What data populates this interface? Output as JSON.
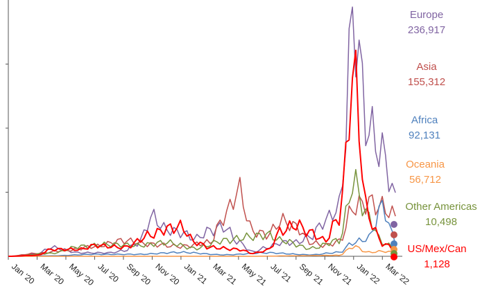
{
  "chart_data": {
    "type": "line",
    "title": "",
    "xlabel": "",
    "ylabel": "",
    "x_ticks": [
      "Jan '20",
      "Mar '20",
      "May '20",
      "Jul '20",
      "Sep '20",
      "Nov '20",
      "Jan '21",
      "Mar '21",
      "May '21",
      "Jul '21",
      "Sep '21",
      "Nov '21",
      "Jan '22",
      "Mar '22"
    ],
    "x_range": [
      "2020-01",
      "2022-04"
    ],
    "y_range": [
      0,
      260000
    ],
    "y_gridlines": [
      0,
      65000,
      130000,
      195000
    ],
    "grid": false,
    "legend_placement": "right",
    "series": [
      {
        "name": "Europe",
        "value_label": "236,917",
        "color": "#8064a2",
        "x": [
          "2020-01",
          "2020-03",
          "2020-04",
          "2020-06",
          "2020-08",
          "2020-09",
          "2020-10",
          "2020-11",
          "2020-12",
          "2021-01",
          "2021-02",
          "2021-03",
          "2021-04",
          "2021-05",
          "2021-06",
          "2021-07",
          "2021-08",
          "2021-09",
          "2021-10",
          "2021-11",
          "2021-12",
          "2022-01",
          "2022-02",
          "2022-03",
          "2022-04"
        ],
        "y": [
          0,
          2500,
          9000,
          3500,
          3500,
          5500,
          13000,
          40000,
          27000,
          24000,
          18000,
          26000,
          30000,
          14000,
          4500,
          9000,
          14000,
          14000,
          20000,
          36000,
          50000,
          240000,
          130000,
          105000,
          55000
        ]
      },
      {
        "name": "Asia",
        "value_label": "155,312",
        "color": "#c0504d",
        "x": [
          "2020-01",
          "2020-03",
          "2020-05",
          "2020-07",
          "2020-09",
          "2020-11",
          "2021-01",
          "2021-03",
          "2021-04",
          "2021-05",
          "2021-06",
          "2021-07",
          "2021-08",
          "2021-09",
          "2021-10",
          "2021-11",
          "2021-12",
          "2022-01",
          "2022-02",
          "2022-03",
          "2022-04"
        ],
        "y": [
          0,
          3000,
          6000,
          10000,
          16000,
          12000,
          10000,
          14000,
          40000,
          67000,
          25000,
          22000,
          36000,
          30000,
          14000,
          11000,
          15000,
          50000,
          55000,
          50000,
          40000
        ]
      },
      {
        "name": "Africa",
        "value_label": "92,131",
        "color": "#4f81bd",
        "x": [
          "2020-01",
          "2020-04",
          "2020-07",
          "2020-10",
          "2021-01",
          "2021-04",
          "2021-07",
          "2021-10",
          "2021-12",
          "2022-01",
          "2022-02",
          "2022-03",
          "2022-04"
        ],
        "y": [
          0,
          500,
          2000,
          2000,
          4000,
          1500,
          3500,
          1500,
          4000,
          14000,
          18000,
          50000,
          12000
        ]
      },
      {
        "name": "Oceania",
        "value_label": "56,712",
        "color": "#f79646",
        "x": [
          "2020-01",
          "2021-06",
          "2021-09",
          "2021-12",
          "2022-01",
          "2022-02",
          "2022-03",
          "2022-04"
        ],
        "y": [
          0,
          0,
          500,
          1000,
          10000,
          4000,
          5000,
          4000
        ]
      },
      {
        "name": "Other Americas",
        "value_label": "10,498",
        "color": "#77933c",
        "x": [
          "2020-01",
          "2020-04",
          "2020-06",
          "2020-08",
          "2020-10",
          "2020-12",
          "2021-02",
          "2021-04",
          "2021-06",
          "2021-07",
          "2021-08",
          "2021-10",
          "2021-12",
          "2022-01",
          "2022-02",
          "2022-03",
          "2022-04"
        ],
        "y": [
          0,
          3000,
          10000,
          12000,
          11000,
          14000,
          8000,
          16000,
          20000,
          22000,
          16000,
          8000,
          16000,
          75000,
          40000,
          14000,
          7000
        ]
      },
      {
        "name": "US/Mex/Can",
        "value_label": "1,128",
        "color": "#ff0000",
        "x": [
          "2020-01",
          "2020-03",
          "2020-04",
          "2020-06",
          "2020-07",
          "2020-09",
          "2020-11",
          "2020-12",
          "2021-01",
          "2021-02",
          "2021-03",
          "2021-05",
          "2021-06",
          "2021-07",
          "2021-08",
          "2021-09",
          "2021-10",
          "2021-11",
          "2021-12",
          "2022-01",
          "2022-02",
          "2022-03",
          "2022-04"
        ],
        "y": [
          0,
          1000,
          7000,
          7000,
          11000,
          9000,
          22000,
          28000,
          30000,
          14000,
          9000,
          7000,
          3000,
          6000,
          26000,
          32000,
          24000,
          16000,
          40000,
          182000,
          40000,
          13000,
          6000
        ]
      }
    ]
  }
}
